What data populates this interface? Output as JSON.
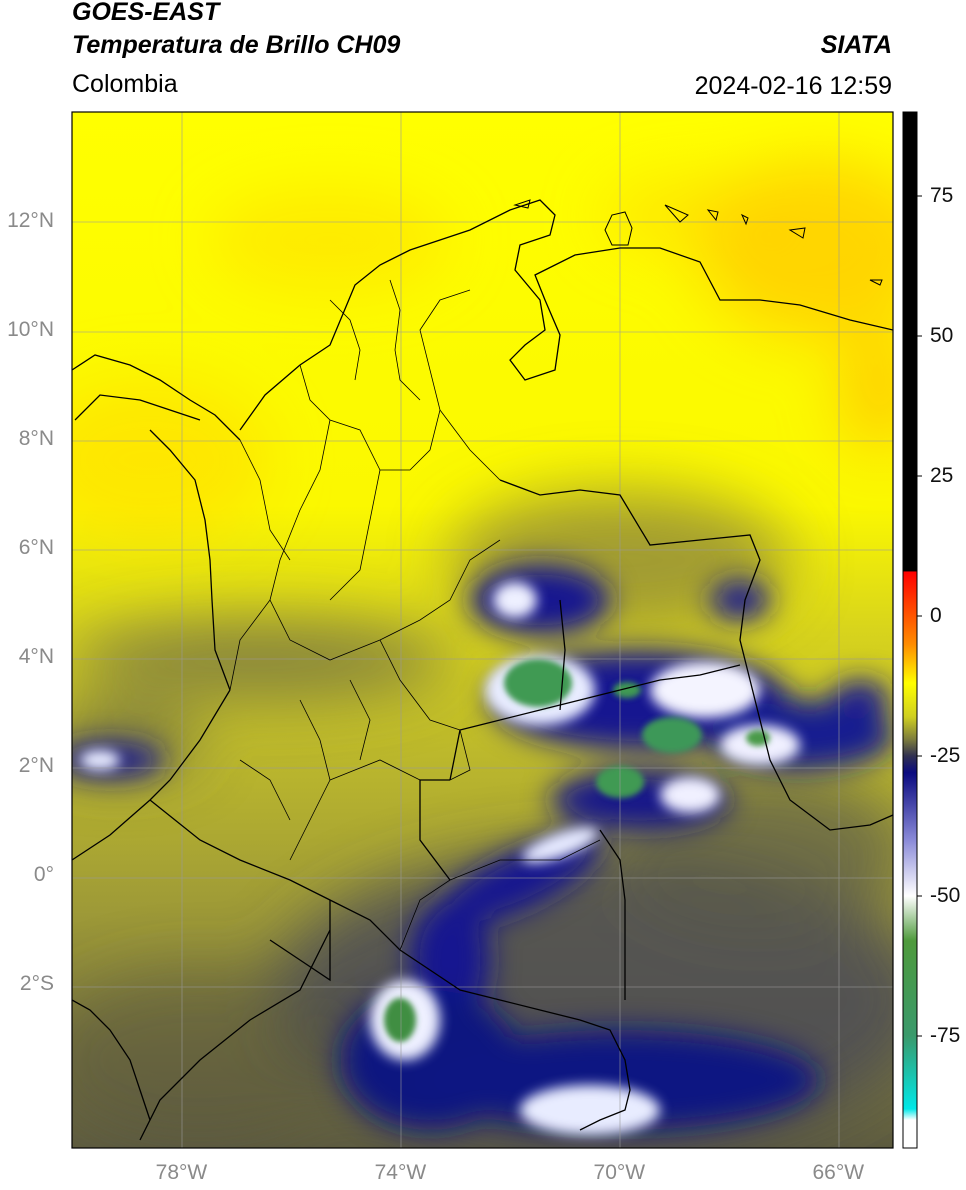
{
  "header": {
    "satellite": "GOES-EAST",
    "product": "Temperatura de Brillo CH09",
    "region": "Colombia",
    "organization": "SIATA",
    "timestamp": "2024-02-16 12:59"
  },
  "map": {
    "lon_range": [
      -80,
      -65
    ],
    "lat_range": [
      -5,
      14
    ],
    "lat_ticks": [
      {
        "value": 12,
        "label": "12°N"
      },
      {
        "value": 10,
        "label": "10°N"
      },
      {
        "value": 8,
        "label": "8°N"
      },
      {
        "value": 6,
        "label": "6°N"
      },
      {
        "value": 4,
        "label": "4°N"
      },
      {
        "value": 2,
        "label": "2°N"
      },
      {
        "value": 0,
        "label": "0°"
      },
      {
        "value": -2,
        "label": "2°S"
      }
    ],
    "lon_ticks": [
      {
        "value": -78,
        "label": "78°W"
      },
      {
        "value": -74,
        "label": "74°W"
      },
      {
        "value": -70,
        "label": "70°W"
      },
      {
        "value": -66,
        "label": "66°W"
      }
    ],
    "gridlines": true
  },
  "colorbar": {
    "range": [
      -95,
      90
    ],
    "ticks": [
      {
        "value": 75,
        "label": "75"
      },
      {
        "value": 50,
        "label": "50"
      },
      {
        "value": 25,
        "label": "25"
      },
      {
        "value": 0,
        "label": "0"
      },
      {
        "value": -25,
        "label": "-25"
      },
      {
        "value": -50,
        "label": "-50"
      },
      {
        "value": -75,
        "label": "-75"
      }
    ],
    "stops": [
      {
        "value": 90,
        "color": "#000000"
      },
      {
        "value": 8,
        "color": "#000000"
      },
      {
        "value": 7.9,
        "color": "#ff0000"
      },
      {
        "value": -5,
        "color": "#ff8c00"
      },
      {
        "value": -12,
        "color": "#ffff00"
      },
      {
        "value": -18,
        "color": "#cfcf20"
      },
      {
        "value": -22,
        "color": "#7d7d3c"
      },
      {
        "value": -25,
        "color": "#303050"
      },
      {
        "value": -28,
        "color": "#0a0a80"
      },
      {
        "value": -40,
        "color": "#8a8ad8"
      },
      {
        "value": -50,
        "color": "#ffffff"
      },
      {
        "value": -58,
        "color": "#4e9a3c"
      },
      {
        "value": -75,
        "color": "#3a9a6c"
      },
      {
        "value": -88,
        "color": "#00e8e8"
      },
      {
        "value": -90,
        "color": "#ffffff"
      },
      {
        "value": -95,
        "color": "#ffffff"
      }
    ]
  },
  "colors": {
    "warm_yellow": "#ffff00",
    "orange_patch": "#ffcc00",
    "mid_olive": "#b8b630",
    "dark_olive": "#6e6c3c",
    "deep_blue": "#101488",
    "cloud_white": "#f2f2ff",
    "cold_green": "#3f9a52",
    "border": "#000000",
    "grid": "#9a9a9a"
  }
}
